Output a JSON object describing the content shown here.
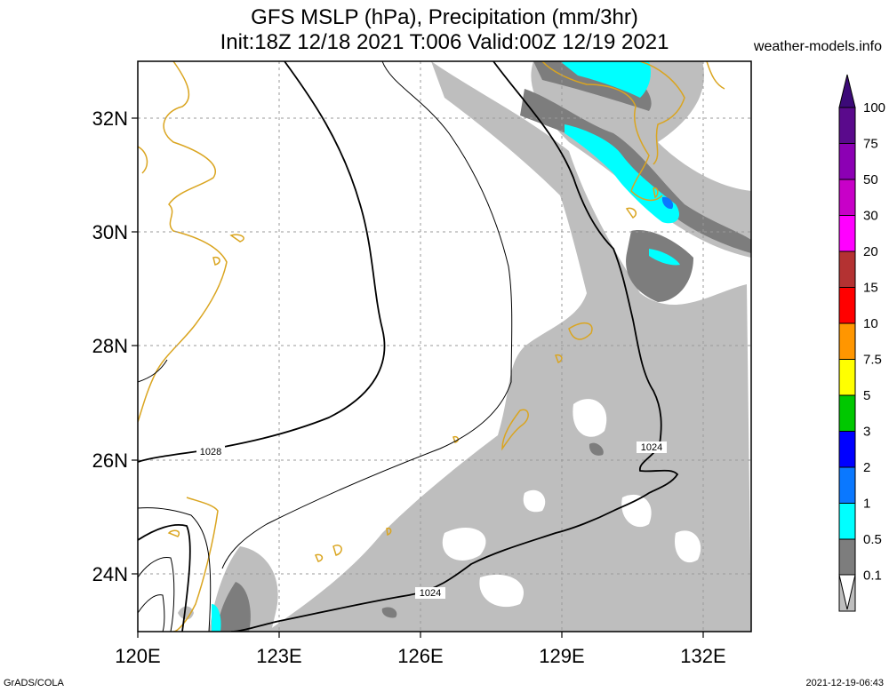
{
  "title": {
    "line1": "GFS MSLP (hPa), Precipitation (mm/3hr)",
    "line2": "Init:18Z 12/18 2021 T:006 Valid:00Z 12/19 2021"
  },
  "site": "weather-models.info",
  "footer": {
    "left": "GrADS/COLA",
    "right": "2021-12-19-06:43"
  },
  "map": {
    "lon_range": [
      120,
      133
    ],
    "lat_range": [
      23,
      33
    ],
    "x_ticks": [
      "120E",
      "123E",
      "126E",
      "129E",
      "132E"
    ],
    "y_ticks": [
      "32N",
      "30N",
      "28N",
      "26N",
      "24N"
    ],
    "isobar_labels": [
      "1028",
      "1024",
      "1024"
    ]
  },
  "legend": {
    "values": [
      "100",
      "75",
      "50",
      "30",
      "20",
      "15",
      "10",
      "7.5",
      "5",
      "3",
      "2",
      "1",
      "0.5",
      "0.1"
    ],
    "colors": [
      "#5a0a8c",
      "#8c00b4",
      "#c800c8",
      "#ff00ff",
      "#b43232",
      "#ff0000",
      "#ff9600",
      "#ffff00",
      "#00c800",
      "#0000ff",
      "#0a78ff",
      "#00ffff",
      "#7d7d7d",
      "#bebebe"
    ],
    "arrow_top_color": "#3c0a78"
  },
  "colors": {
    "coast": "#daa520",
    "isobar": "#000000",
    "grid": "#999999"
  }
}
